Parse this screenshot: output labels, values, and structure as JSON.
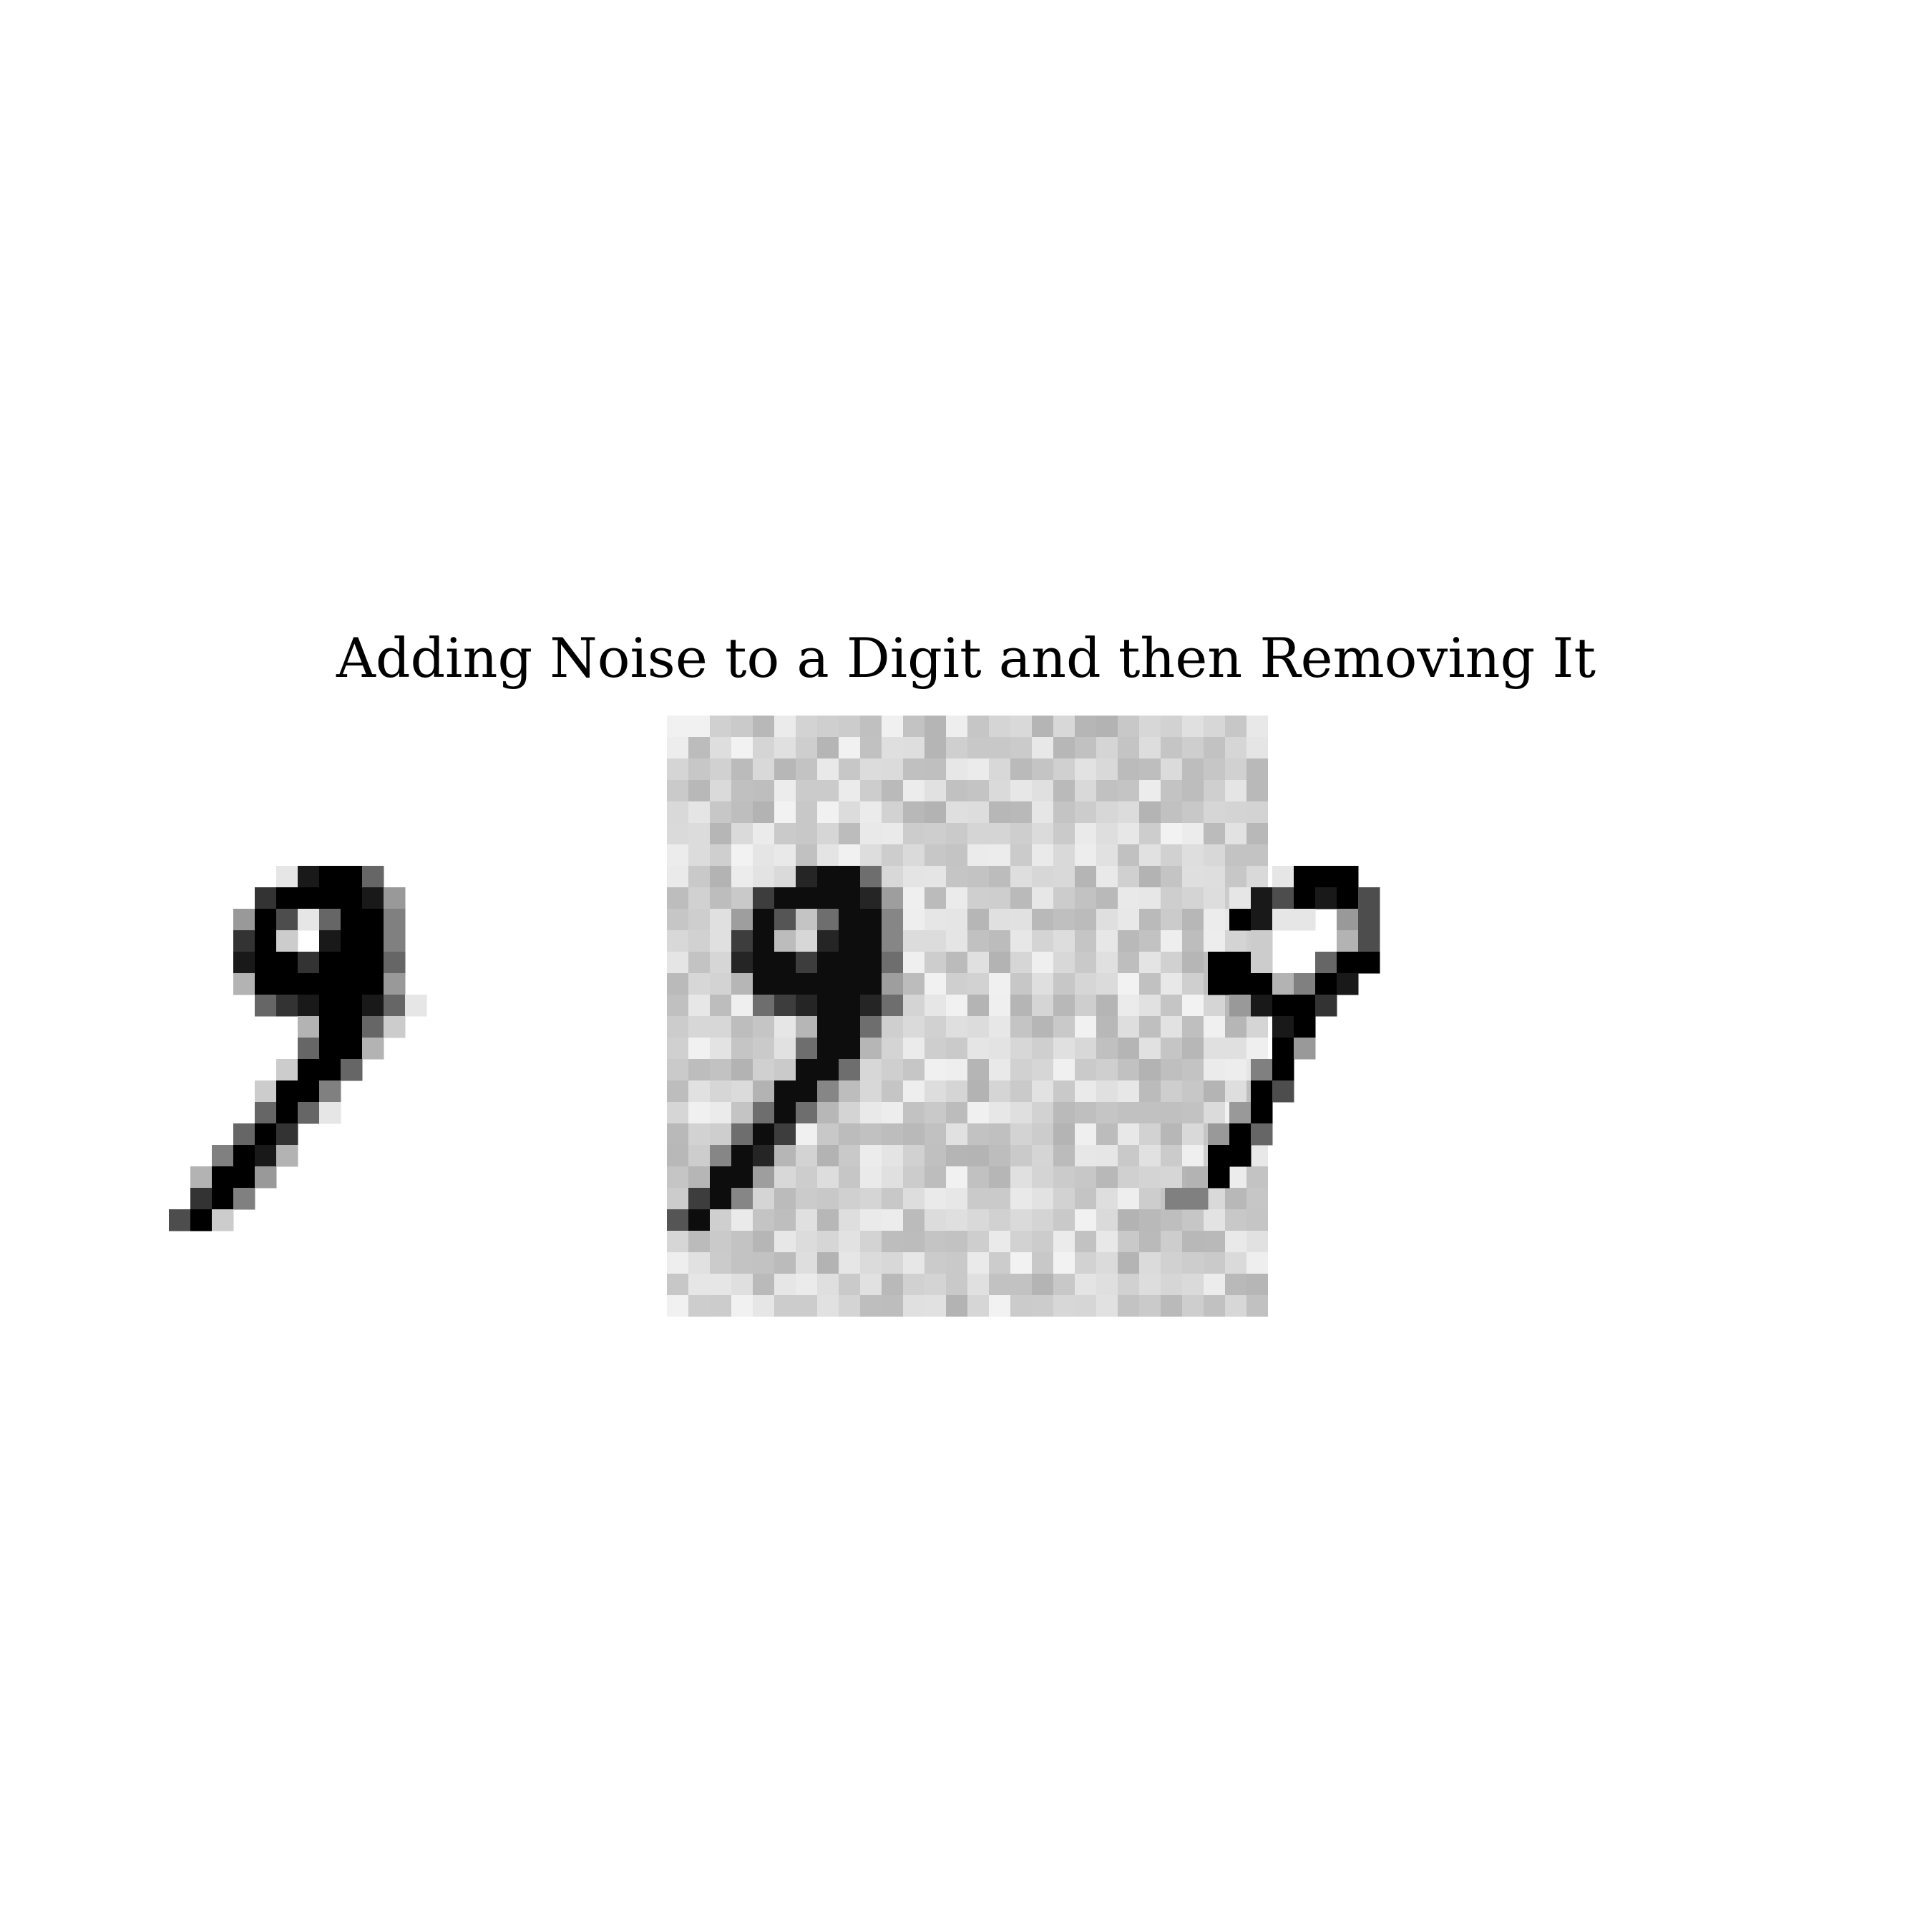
{
  "title": "Adding Noise to a Digit and then Removing It",
  "colormap": "binary",
  "panels": [
    {
      "name": "original-digit",
      "description_digit": "9"
    },
    {
      "name": "noisy-digit",
      "noise": true
    },
    {
      "name": "denoised-digit"
    }
  ]
}
